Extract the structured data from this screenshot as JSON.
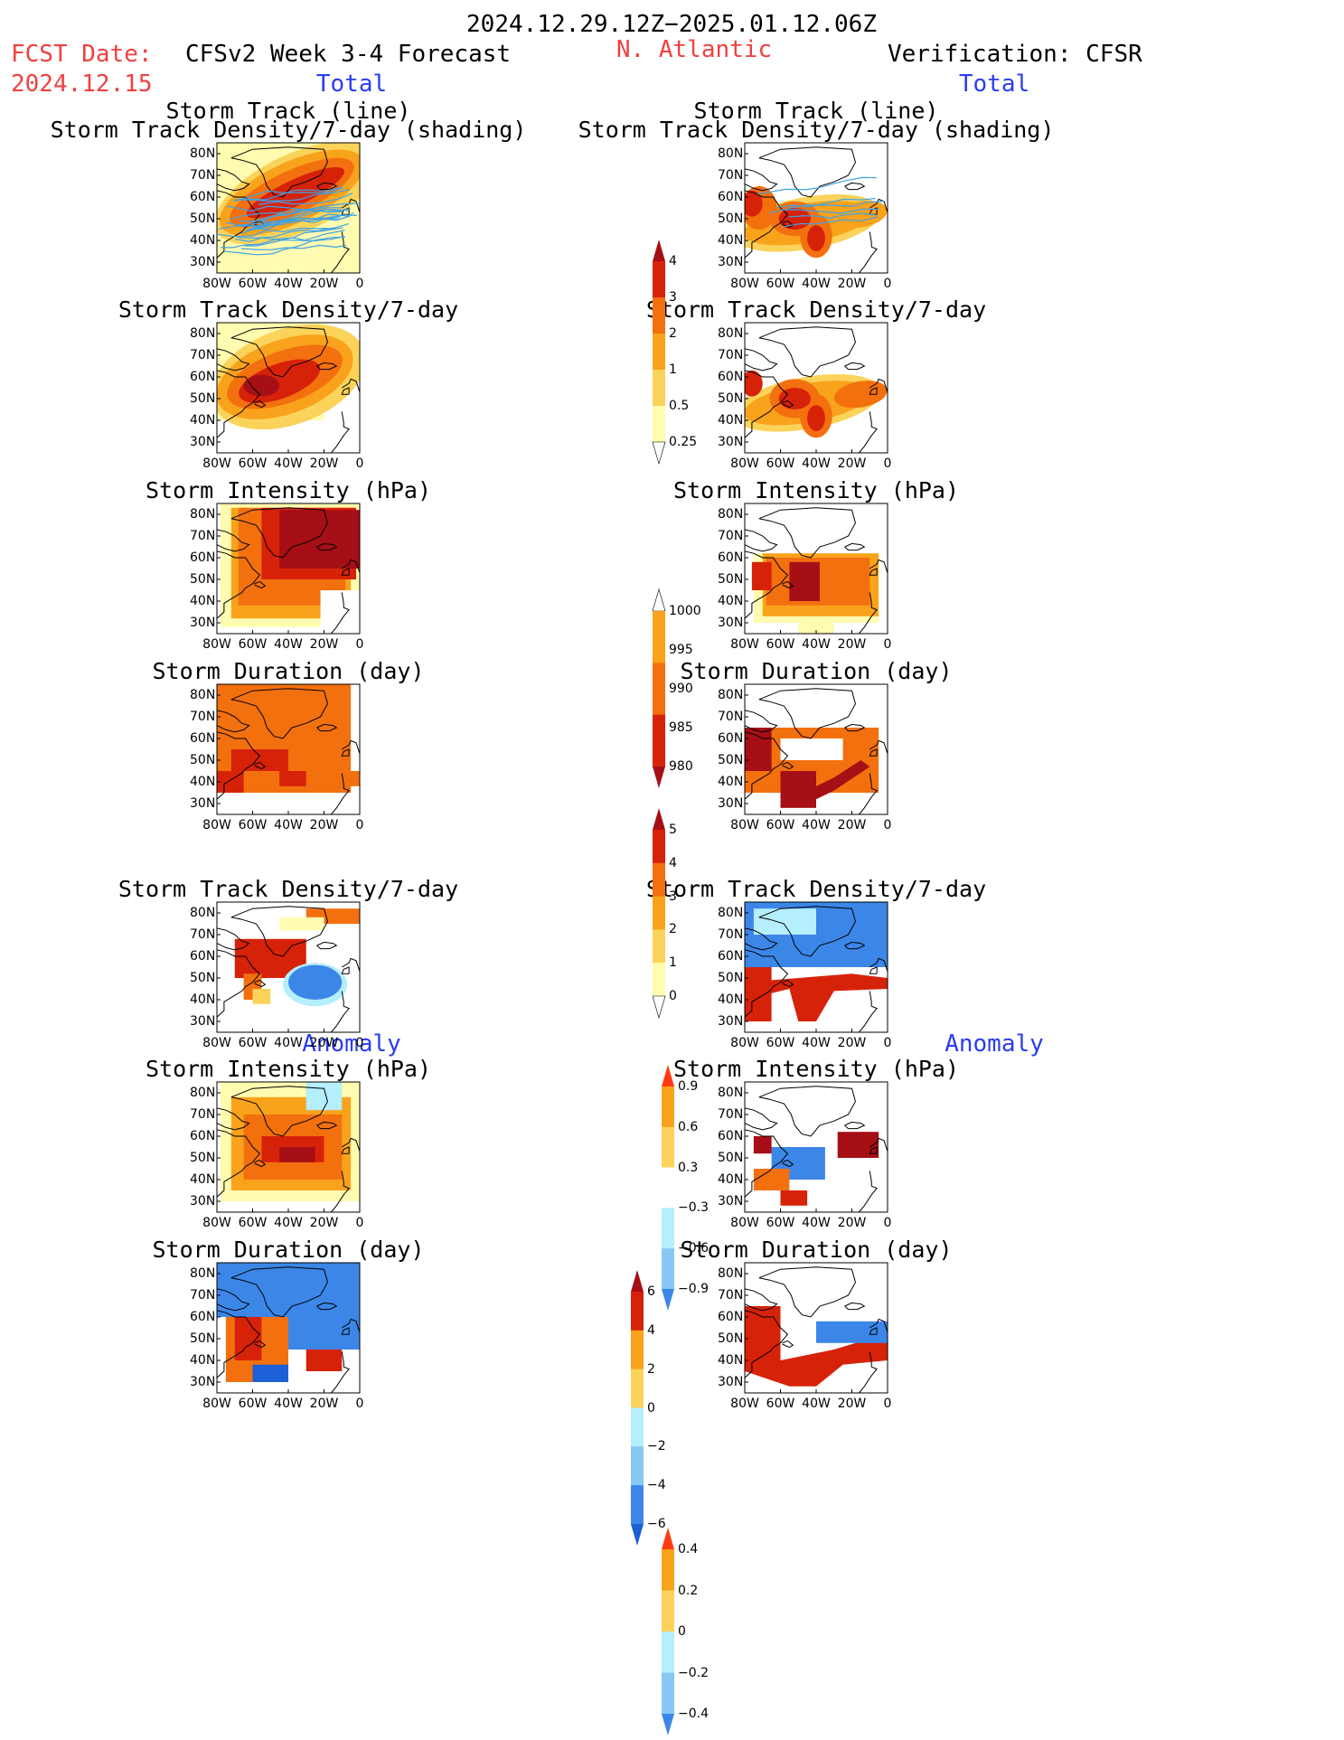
{
  "header": {
    "date_range": "2024.12.29.12Z−2025.01.12.06Z",
    "fcst_label": "FCST Date:",
    "fcst_date": "2024.12.15",
    "model": "CFSv2 Week 3-4 Forecast",
    "region": "N. Atlantic",
    "verification": "Verification: CFSR",
    "left_total": "Total",
    "right_total": "Total",
    "left_anomaly": "Anomaly",
    "right_anomaly": "Anomaly"
  },
  "axes": {
    "lat_ticks": [
      "80N",
      "70N",
      "60N",
      "50N",
      "40N",
      "30N"
    ],
    "lon_ticks": [
      "80W",
      "60W",
      "40W",
      "20W",
      "0"
    ]
  },
  "colors": {
    "yellow_pale": "#fffbb0",
    "yellow": "#fbd35a",
    "orange_light": "#f9a21c",
    "orange": "#f3700e",
    "red": "#d7220a",
    "dark_red": "#a50f15",
    "light_blue": "#b5eefc",
    "mid_blue": "#87c8f5",
    "blue": "#3c86e8",
    "dark_blue": "#1c5fd6",
    "track_line": "#3fa3e6",
    "map_line": "#000000"
  },
  "panels": [
    {
      "id": "fc-tot-track",
      "title1": "Storm Track (line)",
      "title2": "Storm Track Density/7-day (shading)",
      "scheme": "warm",
      "tracks": true
    },
    {
      "id": "ob-tot-track",
      "title1": "Storm Track (line)",
      "title2": "Storm Track Density/7-day (shading)",
      "scheme": "warm",
      "tracks": true
    },
    {
      "id": "fc-tot-density",
      "title1": "Storm Track Density/7-day",
      "scheme": "warm"
    },
    {
      "id": "ob-tot-density",
      "title1": "Storm Track Density/7-day",
      "scheme": "warm"
    },
    {
      "id": "fc-tot-intensity",
      "title1": "Storm Intensity (hPa)",
      "scheme": "warm"
    },
    {
      "id": "ob-tot-intensity",
      "title1": "Storm Intensity (hPa)",
      "scheme": "warm"
    },
    {
      "id": "fc-tot-duration",
      "title1": "Storm Duration (day)",
      "scheme": "warm"
    },
    {
      "id": "ob-tot-duration",
      "title1": "Storm Duration (day)",
      "scheme": "warm"
    },
    {
      "id": "fc-anom-density",
      "title1": "Storm Track Density/7-day",
      "scheme": "div"
    },
    {
      "id": "ob-anom-density",
      "title1": "Storm Track Density/7-day",
      "scheme": "div"
    },
    {
      "id": "fc-anom-intensity",
      "title1": "Storm Intensity (hPa)",
      "scheme": "div"
    },
    {
      "id": "ob-anom-intensity",
      "title1": "Storm Intensity (hPa)",
      "scheme": "div"
    },
    {
      "id": "fc-anom-duration",
      "title1": "Storm Duration (day)",
      "scheme": "div"
    },
    {
      "id": "ob-anom-duration",
      "title1": "Storm Duration (day)",
      "scheme": "div"
    }
  ],
  "chart_data": [
    {
      "type": "heatmap",
      "title": "Storm Track (line) / Storm Track Density/7-day (shading)",
      "source": "CFSv2 Week 3-4 Forecast, Total",
      "xlim": [
        -80,
        0
      ],
      "ylim": [
        25,
        85
      ],
      "legend": [
        "0.25",
        "0.5",
        "1",
        "2",
        "3",
        "4"
      ]
    },
    {
      "type": "heatmap",
      "title": "Storm Track (line) / Storm Track Density/7-day (shading)",
      "source": "Verification: CFSR, Total",
      "xlim": [
        -80,
        0
      ],
      "ylim": [
        25,
        85
      ],
      "legend": [
        "0.25",
        "0.5",
        "1",
        "2",
        "3",
        "4"
      ]
    },
    {
      "type": "heatmap",
      "title": "Storm Track Density/7-day",
      "source": "Forecast Total",
      "xlim": [
        -80,
        0
      ],
      "ylim": [
        25,
        85
      ],
      "legend": [
        "0.25",
        "0.5",
        "1",
        "2",
        "3",
        "4"
      ]
    },
    {
      "type": "heatmap",
      "title": "Storm Track Density/7-day",
      "source": "CFSR Total",
      "xlim": [
        -80,
        0
      ],
      "ylim": [
        25,
        85
      ],
      "legend": [
        "0.25",
        "0.5",
        "1",
        "2",
        "3",
        "4"
      ]
    },
    {
      "type": "heatmap",
      "title": "Storm Intensity (hPa)",
      "source": "Forecast Total",
      "xlim": [
        -80,
        0
      ],
      "ylim": [
        25,
        85
      ],
      "legend": [
        "1000",
        "995",
        "990",
        "985",
        "980"
      ]
    },
    {
      "type": "heatmap",
      "title": "Storm Intensity (hPa)",
      "source": "CFSR Total",
      "xlim": [
        -80,
        0
      ],
      "ylim": [
        25,
        85
      ],
      "legend": [
        "1000",
        "995",
        "990",
        "985",
        "980"
      ]
    },
    {
      "type": "heatmap",
      "title": "Storm Duration (day)",
      "source": "Forecast Total",
      "xlim": [
        -80,
        0
      ],
      "ylim": [
        25,
        85
      ],
      "legend": [
        "0",
        "1",
        "2",
        "3",
        "4",
        "5"
      ]
    },
    {
      "type": "heatmap",
      "title": "Storm Duration (day)",
      "source": "CFSR Total",
      "xlim": [
        -80,
        0
      ],
      "ylim": [
        25,
        85
      ],
      "legend": [
        "0",
        "1",
        "2",
        "3",
        "4",
        "5"
      ]
    },
    {
      "type": "heatmap",
      "title": "Storm Track Density/7-day",
      "source": "Forecast Anomaly",
      "xlim": [
        -80,
        0
      ],
      "ylim": [
        25,
        85
      ],
      "legend": [
        "0.9",
        "0.6",
        "0.3",
        "-0.3",
        "-0.6",
        "-0.9"
      ]
    },
    {
      "type": "heatmap",
      "title": "Storm Track Density/7-day",
      "source": "CFSR Anomaly",
      "xlim": [
        -80,
        0
      ],
      "ylim": [
        25,
        85
      ],
      "legend": [
        "0.9",
        "0.6",
        "0.3",
        "-0.3",
        "-0.6",
        "-0.9"
      ]
    },
    {
      "type": "heatmap",
      "title": "Storm Intensity (hPa)",
      "source": "Forecast Anomaly",
      "xlim": [
        -80,
        0
      ],
      "ylim": [
        25,
        85
      ],
      "legend": [
        "6",
        "4",
        "2",
        "0",
        "-2",
        "-4",
        "-6"
      ]
    },
    {
      "type": "heatmap",
      "title": "Storm Intensity (hPa)",
      "source": "CFSR Anomaly",
      "xlim": [
        -80,
        0
      ],
      "ylim": [
        25,
        85
      ],
      "legend": [
        "6",
        "4",
        "2",
        "0",
        "-2",
        "-4",
        "-6"
      ]
    },
    {
      "type": "heatmap",
      "title": "Storm Duration (day)",
      "source": "Forecast Anomaly",
      "xlim": [
        -80,
        0
      ],
      "ylim": [
        25,
        85
      ],
      "legend": [
        "0.4",
        "0.2",
        "0",
        "-0.2",
        "-0.4"
      ]
    },
    {
      "type": "heatmap",
      "title": "Storm Duration (day)",
      "source": "CFSR Anomaly",
      "xlim": [
        -80,
        0
      ],
      "ylim": [
        25,
        85
      ],
      "legend": [
        "0.4",
        "0.2",
        "0",
        "-0.2",
        "-0.4"
      ]
    }
  ],
  "colorbars": [
    {
      "id": "cb-density",
      "labels": [
        "4",
        "3",
        "2",
        "1",
        "0.5",
        "0.25"
      ]
    },
    {
      "id": "cb-intensity",
      "labels": [
        "1000",
        "995",
        "990",
        "985",
        "980"
      ]
    },
    {
      "id": "cb-duration",
      "labels": [
        "5",
        "4",
        "3",
        "2",
        "1",
        "0"
      ]
    },
    {
      "id": "cb-anom-density",
      "labels": [
        "0.9",
        "0.6",
        "0.3",
        "−0.3",
        "−0.6",
        "−0.9"
      ]
    },
    {
      "id": "cb-anom-intensity",
      "labels": [
        "6",
        "4",
        "2",
        "0",
        "−2",
        "−4",
        "−6"
      ]
    },
    {
      "id": "cb-anom-duration",
      "labels": [
        "0.4",
        "0.2",
        "0",
        "−0.2",
        "−0.4"
      ]
    }
  ]
}
